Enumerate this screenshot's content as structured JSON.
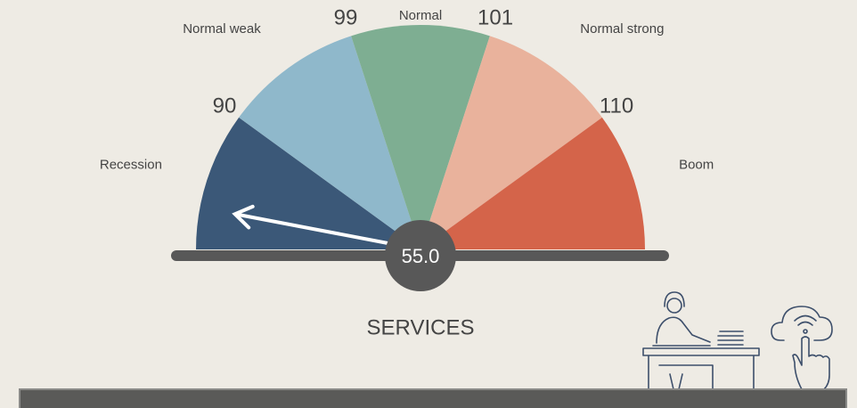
{
  "chart_data": {
    "type": "gauge",
    "title": "SERVICES",
    "categories": [
      "Recession",
      "Normal weak",
      "Normal",
      "Normal strong",
      "Boom"
    ],
    "colors": [
      "#3b5878",
      "#8fb8cb",
      "#7eae92",
      "#e9b29c",
      "#d4644a"
    ],
    "ylim": [
      40,
      160
    ],
    "yticks": [
      90,
      99,
      101,
      110
    ],
    "value": 55,
    "value_label": "55.0"
  }
}
